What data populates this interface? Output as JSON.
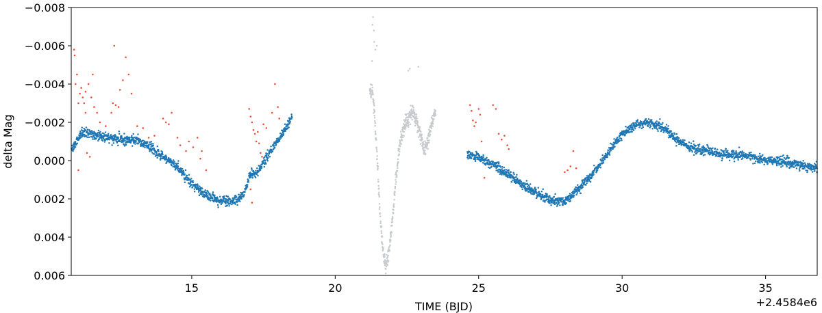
{
  "chart_data": {
    "type": "scatter",
    "title": "",
    "xlabel": "TIME (BJD)",
    "ylabel": "delta Mag",
    "x_offset_label": "+2.4584e6",
    "xlim": [
      10.8,
      36.8
    ],
    "ylim": [
      -0.008,
      0.006
    ],
    "y_inverted": true,
    "grid": false,
    "x_ticks": [
      15,
      20,
      25,
      30,
      35
    ],
    "x_tick_labels": [
      "15",
      "20",
      "25",
      "30",
      "35"
    ],
    "y_ticks": [
      -0.008,
      -0.006,
      -0.004,
      -0.002,
      0.0,
      0.002,
      0.004,
      0.006
    ],
    "y_tick_labels": [
      "−0.008",
      "−0.006",
      "−0.004",
      "−0.002",
      "0.000",
      "0.002",
      "0.004",
      "0.006"
    ],
    "series": [
      {
        "color": "#1f77b4",
        "segments": [
          {
            "x": [
              10.8,
              11.2,
              11.5,
              12.0,
              12.5,
              13.0,
              13.5,
              14.0,
              14.5,
              15.0,
              15.5,
              16.0,
              16.5,
              16.8,
              16.95,
              17.0,
              17.3,
              17.5,
              17.8,
              18.0,
              18.3,
              18.5
            ],
            "y": [
              -0.0005,
              -0.0015,
              -0.0014,
              -0.0012,
              -0.0011,
              -0.0011,
              -0.0008,
              -0.0002,
              0.0003,
              0.0012,
              0.0018,
              0.0021,
              0.0021,
              0.0018,
              0.0012,
              0.0008,
              0.0006,
              0.0001,
              -0.0006,
              -0.0011,
              -0.0018,
              -0.0023
            ],
            "spread": 0.00022,
            "density": 140
          },
          {
            "x": [
              24.6,
              25.0,
              25.5,
              26.0,
              26.5,
              27.0,
              27.5,
              28.0,
              28.5,
              29.0,
              29.5,
              30.0,
              30.5,
              31.0,
              31.5,
              32.0,
              32.5,
              33.0,
              33.5,
              34.0,
              34.5,
              35.0,
              35.5,
              36.0,
              36.5,
              36.8
            ],
            "y": [
              -0.0003,
              -0.0002,
              0.0002,
              0.0007,
              0.0012,
              0.0017,
              0.0021,
              0.0021,
              0.0015,
              0.0006,
              -0.0004,
              -0.0014,
              -0.0019,
              -0.002,
              -0.0017,
              -0.001,
              -0.0006,
              -0.0005,
              -0.0003,
              -0.0003,
              -0.0002,
              0.0,
              0.0,
              0.0002,
              0.0003,
              0.0004
            ],
            "spread": 0.00022,
            "density": 140
          }
        ]
      },
      {
        "color": "#c8cbcd",
        "segments": [
          {
            "x": [
              21.2,
              21.3,
              21.35,
              21.45,
              21.55,
              21.65,
              21.75,
              21.8,
              21.9,
              22.0,
              22.1,
              22.2,
              22.3,
              22.4,
              22.5,
              22.6,
              22.7,
              22.8,
              22.9,
              23.0,
              23.1,
              23.2,
              23.3,
              23.5
            ],
            "y": [
              -0.0035,
              -0.0037,
              -0.003,
              -0.0005,
              0.0025,
              0.0045,
              0.0055,
              0.0053,
              0.0045,
              0.003,
              0.0012,
              -0.0002,
              -0.0012,
              -0.0018,
              -0.0021,
              -0.0023,
              -0.0026,
              -0.0022,
              -0.0017,
              -0.0012,
              -0.0006,
              -0.0008,
              -0.0016,
              -0.0026
            ],
            "spread": 0.00035,
            "density": 220
          }
        ],
        "extra_points": [
          [
            21.32,
            -0.0075
          ],
          [
            21.35,
            -0.0068
          ],
          [
            21.4,
            -0.0058
          ],
          [
            21.28,
            -0.0052
          ],
          [
            21.36,
            -0.0062
          ],
          [
            22.6,
            -0.0048
          ],
          [
            22.55,
            -0.0047
          ],
          [
            22.9,
            -0.0049
          ],
          [
            21.45,
            -0.006
          ],
          [
            21.3,
            -0.0071
          ]
        ]
      },
      {
        "color": "#e8523a",
        "points": [
          [
            10.9,
            -0.0058
          ],
          [
            10.92,
            -0.0055
          ],
          [
            10.95,
            -0.004
          ],
          [
            11.0,
            -0.0045
          ],
          [
            11.05,
            -0.003
          ],
          [
            11.1,
            -0.0035
          ],
          [
            11.15,
            -0.0038
          ],
          [
            11.2,
            -0.0033
          ],
          [
            11.3,
            -0.0036
          ],
          [
            11.4,
            -0.004
          ],
          [
            11.5,
            -0.0033
          ],
          [
            11.55,
            -0.0045
          ],
          [
            11.6,
            -0.0028
          ],
          [
            11.3,
            -0.0025
          ],
          [
            11.25,
            -0.003
          ],
          [
            11.7,
            -0.0025
          ],
          [
            11.8,
            -0.002
          ],
          [
            12.0,
            -0.0018
          ],
          [
            12.2,
            -0.0025
          ],
          [
            12.25,
            -0.003
          ],
          [
            12.3,
            -0.006
          ],
          [
            12.35,
            -0.0029
          ],
          [
            12.45,
            -0.0028
          ],
          [
            12.5,
            -0.0037
          ],
          [
            12.6,
            -0.0042
          ],
          [
            12.7,
            -0.0054
          ],
          [
            12.8,
            -0.0045
          ],
          [
            12.9,
            -0.0035
          ],
          [
            13.1,
            -0.0018
          ],
          [
            13.3,
            -0.0017
          ],
          [
            13.5,
            -0.0012
          ],
          [
            13.7,
            -0.0013
          ],
          [
            14.0,
            -0.0022
          ],
          [
            14.1,
            -0.002
          ],
          [
            14.2,
            -0.0019
          ],
          [
            14.3,
            -0.0025
          ],
          [
            14.5,
            -0.0012
          ],
          [
            14.6,
            -0.0008
          ],
          [
            14.8,
            -0.0005
          ],
          [
            14.9,
            -0.001
          ],
          [
            15.05,
            -0.0007
          ],
          [
            15.2,
            -0.0012
          ],
          [
            15.3,
            -0.0001
          ],
          [
            15.35,
            -0.0005
          ],
          [
            15.5,
            0.0005
          ],
          [
            17.0,
            -0.0027
          ],
          [
            17.05,
            -0.0023
          ],
          [
            17.1,
            -0.002
          ],
          [
            17.15,
            -0.0016
          ],
          [
            17.2,
            -0.0014
          ],
          [
            17.25,
            -0.001
          ],
          [
            17.3,
            -0.0015
          ],
          [
            17.35,
            -0.0009
          ],
          [
            17.4,
            -0.0004
          ],
          [
            17.45,
            -0.0002
          ],
          [
            17.5,
            -0.0019
          ],
          [
            17.05,
            0.0015
          ],
          [
            17.1,
            0.0022
          ],
          [
            17.8,
            -0.0025
          ],
          [
            17.9,
            -0.004
          ],
          [
            18.0,
            -0.0028
          ],
          [
            18.05,
            -0.0022
          ],
          [
            17.6,
            -0.0017
          ],
          [
            11.35,
            -0.0004
          ],
          [
            11.05,
            0.0005
          ],
          [
            11.45,
            -0.0002
          ],
          [
            24.7,
            -0.0029
          ],
          [
            24.75,
            -0.0026
          ],
          [
            24.8,
            -0.0021
          ],
          [
            24.85,
            -0.0018
          ],
          [
            24.9,
            -0.002
          ],
          [
            25.0,
            -0.0027
          ],
          [
            25.05,
            -0.0024
          ],
          [
            25.1,
            -0.001
          ],
          [
            25.2,
            0.0009
          ],
          [
            25.5,
            -0.0029
          ],
          [
            25.6,
            -0.0027
          ],
          [
            25.7,
            -0.0014
          ],
          [
            25.8,
            -0.0011
          ],
          [
            25.9,
            -0.0013
          ],
          [
            26.0,
            -0.0008
          ],
          [
            26.05,
            -0.0006
          ],
          [
            28.0,
            0.0006
          ],
          [
            28.1,
            0.0005
          ],
          [
            28.3,
            -0.0005
          ],
          [
            28.4,
            0.0004
          ],
          [
            28.2,
            0.0003
          ]
        ]
      }
    ]
  }
}
